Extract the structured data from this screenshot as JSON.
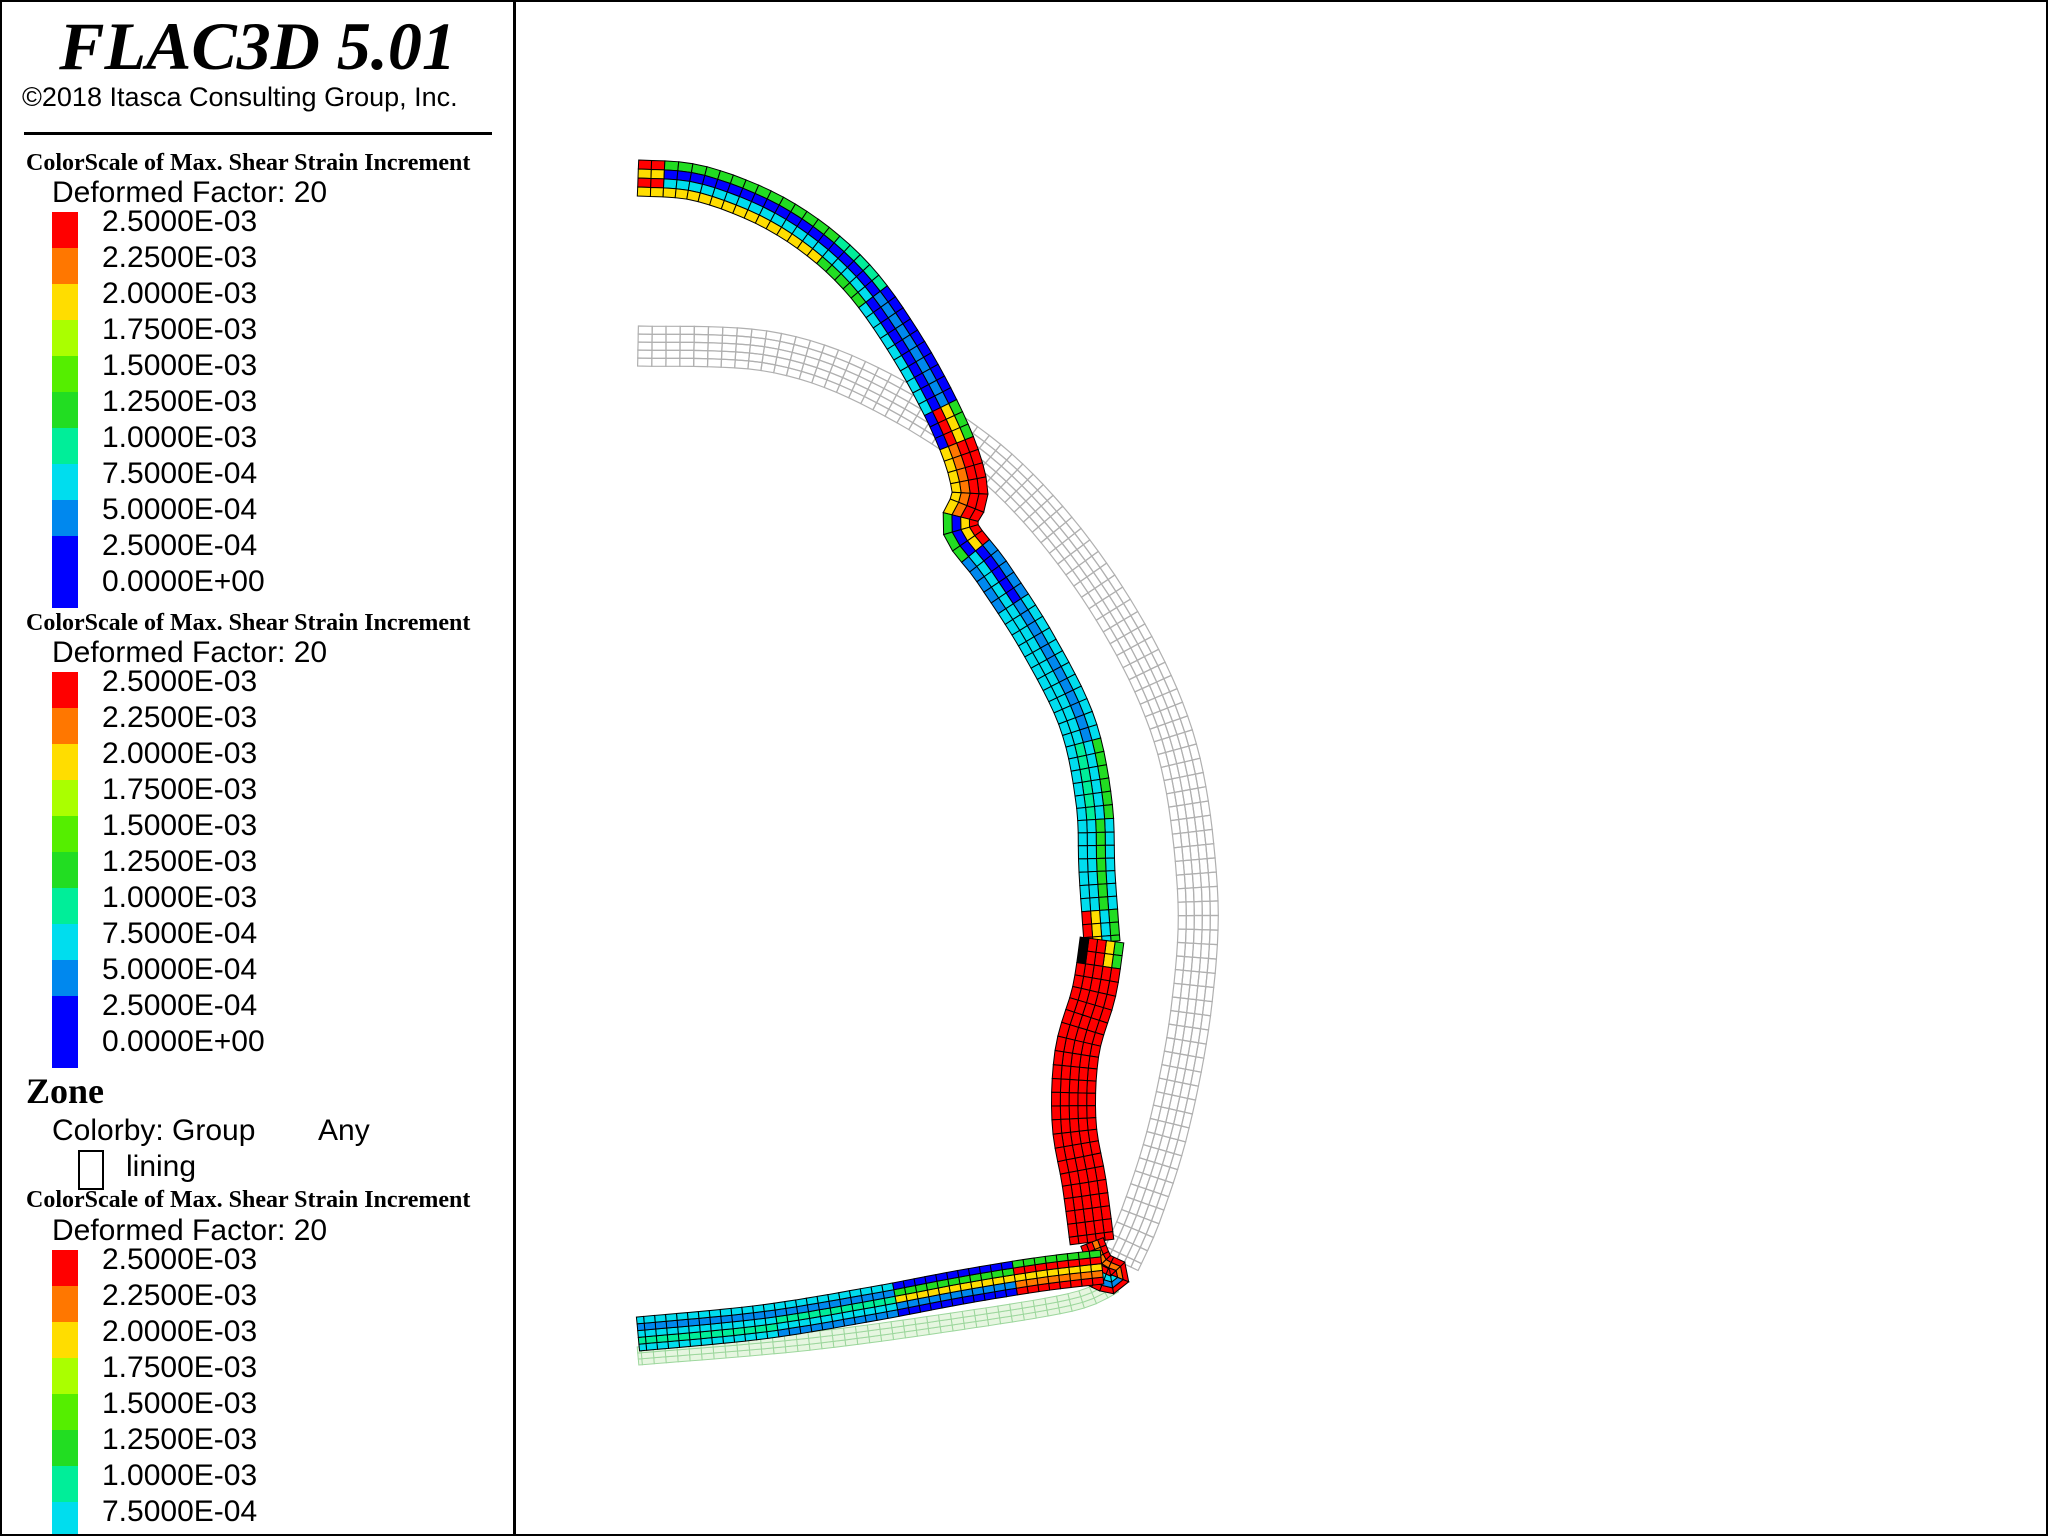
{
  "app": {
    "title": "FLAC3D 5.01",
    "copyright": "©2018 Itasca Consulting Group, Inc."
  },
  "legend": {
    "colorscales": [
      {
        "title": "ColorScale of Max. Shear Strain Increment",
        "deformed_factor": "Deformed Factor: 20",
        "entries": [
          {
            "label": "2.5000E-03",
            "color": "#ff0000"
          },
          {
            "label": "2.2500E-03",
            "color": "#ff7700"
          },
          {
            "label": "2.0000E-03",
            "color": "#ffdd00"
          },
          {
            "label": "1.7500E-03",
            "color": "#aaff00"
          },
          {
            "label": "1.5000E-03",
            "color": "#55ee00"
          },
          {
            "label": "1.2500E-03",
            "color": "#22dd22"
          },
          {
            "label": "1.0000E-03",
            "color": "#00ee99"
          },
          {
            "label": "7.5000E-04",
            "color": "#00ddee"
          },
          {
            "label": "5.0000E-04",
            "color": "#0088ee"
          },
          {
            "label": "2.5000E-04",
            "color": "#0000ff"
          },
          {
            "label": "0.0000E+00",
            "color": "#0000ff"
          }
        ]
      },
      {
        "title": "ColorScale of Max. Shear Strain Increment",
        "deformed_factor": "Deformed Factor: 20",
        "entries": [
          {
            "label": "2.5000E-03",
            "color": "#ff0000"
          },
          {
            "label": "2.2500E-03",
            "color": "#ff7700"
          },
          {
            "label": "2.0000E-03",
            "color": "#ffdd00"
          },
          {
            "label": "1.7500E-03",
            "color": "#aaff00"
          },
          {
            "label": "1.5000E-03",
            "color": "#55ee00"
          },
          {
            "label": "1.2500E-03",
            "color": "#22dd22"
          },
          {
            "label": "1.0000E-03",
            "color": "#00ee99"
          },
          {
            "label": "7.5000E-04",
            "color": "#00ddee"
          },
          {
            "label": "5.0000E-04",
            "color": "#0088ee"
          },
          {
            "label": "2.5000E-04",
            "color": "#0000ff"
          },
          {
            "label": "0.0000E+00",
            "color": "#0000ff"
          }
        ]
      },
      {
        "title": "ColorScale of Max. Shear Strain Increment",
        "deformed_factor": "Deformed Factor: 20",
        "entries": [
          {
            "label": "2.5000E-03",
            "color": "#ff0000"
          },
          {
            "label": "2.2500E-03",
            "color": "#ff7700"
          },
          {
            "label": "2.0000E-03",
            "color": "#ffdd00"
          },
          {
            "label": "1.7500E-03",
            "color": "#aaff00"
          },
          {
            "label": "1.5000E-03",
            "color": "#55ee00"
          },
          {
            "label": "1.2500E-03",
            "color": "#22dd22"
          },
          {
            "label": "1.0000E-03",
            "color": "#00ee99"
          },
          {
            "label": "7.5000E-04",
            "color": "#00ddee"
          }
        ]
      }
    ],
    "zone": {
      "title": "Zone",
      "colorby": "Colorby: Group",
      "any": "Any",
      "group_name": "lining"
    }
  },
  "plot": {
    "original_mesh_color": "#b0b0b0",
    "grid_line_color": "#000000"
  }
}
